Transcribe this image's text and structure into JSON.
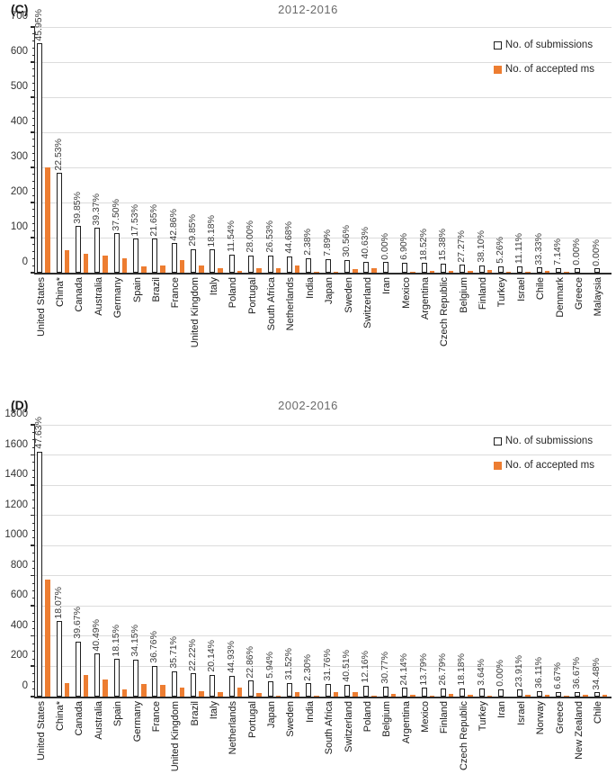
{
  "accent_orange": "#ED7D31",
  "bar_fill_submissions": "#FFFFFF",
  "bar_border": "#1F1F1F",
  "chart_data": [
    {
      "type": "bar",
      "panel_label": "(C)",
      "title": "2012-2016",
      "legend": {
        "submissions": "No. of submissions",
        "accepted": "No. of accepted ms"
      },
      "legend_position": "top-right-inside",
      "grid": true,
      "ylim": [
        0,
        700
      ],
      "ytick_step": 100,
      "yminor_step": 20,
      "categories": [
        "United States",
        "China*",
        "Canada",
        "Australia",
        "Germany",
        "Spain",
        "Brazil",
        "France",
        "United Kingdom",
        "Italy",
        "Poland",
        "Portugal",
        "South Africa",
        "Netherlands",
        "India",
        "Japan",
        "Sweden",
        "Switzerland",
        "Iran",
        "Mexico",
        "Argentina",
        "Czech Republic",
        "Belgium",
        "Finland",
        "Turkey",
        "Israel",
        "Chile",
        "Denmark",
        "Greece",
        "Malaysia"
      ],
      "series": [
        {
          "name": "No. of submissions",
          "values": [
            653,
            284,
            133,
            127,
            112,
            97,
            97,
            84,
            67,
            66,
            52,
            50,
            49,
            47,
            42,
            38,
            36,
            32,
            30,
            29,
            27,
            26,
            22,
            21,
            19,
            18,
            15,
            14,
            13,
            12
          ]
        },
        {
          "name": "No. of accepted ms",
          "values": [
            300,
            64,
            53,
            50,
            42,
            17,
            21,
            36,
            20,
            12,
            6,
            14,
            13,
            21,
            1,
            3,
            11,
            13,
            0,
            2,
            5,
            4,
            6,
            8,
            1,
            2,
            5,
            1,
            0,
            0
          ]
        }
      ],
      "bar_labels": [
        "45.95%",
        "22.53%",
        "39.85%",
        "39.37%",
        "37.50%",
        "17.53%",
        "21.65%",
        "42.86%",
        "29.85%",
        "18.18%",
        "11.54%",
        "28.00%",
        "26.53%",
        "44.68%",
        "2.38%",
        "7.89%",
        "30.56%",
        "40.63%",
        "0.00%",
        "6.90%",
        "18.52%",
        "15.38%",
        "27.27%",
        "38.10%",
        "5.26%",
        "11.11%",
        "33.33%",
        "7.14%",
        "0.00%",
        "0.00%"
      ]
    },
    {
      "type": "bar",
      "panel_label": "(D)",
      "title": "2002-2016",
      "legend": {
        "submissions": "No. of submissions",
        "accepted": "No. of accepted ms"
      },
      "legend_position": "top-right-inside",
      "grid": true,
      "ylim": [
        0,
        1800
      ],
      "ytick_step": 200,
      "yminor_step": 50,
      "categories": [
        "United States",
        "China*",
        "Canada",
        "Australia",
        "Spain",
        "Germany",
        "France",
        "United Kingdom",
        "Brazil",
        "Italy",
        "Netherlands",
        "Portugal",
        "Japan",
        "Sweden",
        "India",
        "South Africa",
        "Switzerland",
        "Poland",
        "Belgium",
        "Argentina",
        "Mexico",
        "Finland",
        "Czech Republic",
        "Turkey",
        "Iran",
        "Israel",
        "Norway",
        "Greece",
        "New Zealand",
        "Chile"
      ],
      "series": [
        {
          "name": "No. of submissions",
          "values": [
            1621,
            498,
            363,
            284,
            248,
            246,
            204,
            168,
            153,
            144,
            138,
            105,
            101,
            92,
            87,
            85,
            79,
            74,
            65,
            58,
            58,
            56,
            55,
            55,
            50,
            46,
            36,
            30,
            30,
            29
          ]
        },
        {
          "name": "No. of accepted ms",
          "values": [
            772,
            90,
            144,
            115,
            45,
            84,
            75,
            60,
            34,
            29,
            62,
            24,
            6,
            29,
            2,
            27,
            32,
            9,
            20,
            14,
            8,
            15,
            10,
            2,
            0,
            11,
            13,
            2,
            11,
            10
          ]
        }
      ],
      "bar_labels": [
        "47.63%",
        "18.07%",
        "39.67%",
        "40.49%",
        "18.15%",
        "34.15%",
        "36.76%",
        "35.71%",
        "22.22%",
        "20.14%",
        "44.93%",
        "22.86%",
        "5.94%",
        "31.52%",
        "2.30%",
        "31.76%",
        "40.51%",
        "12.16%",
        "30.77%",
        "24.14%",
        "13.79%",
        "26.79%",
        "18.18%",
        "3.64%",
        "0.00%",
        "23.91%",
        "36.11%",
        "6.67%",
        "36.67%",
        "34.48%"
      ]
    }
  ]
}
